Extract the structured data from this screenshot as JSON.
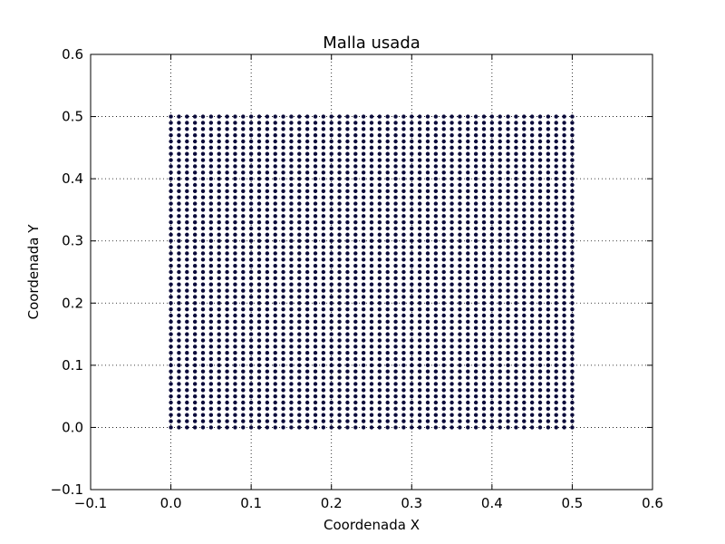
{
  "chart_data": {
    "type": "scatter",
    "title": "Malla usada",
    "xlabel": "Coordenada X",
    "ylabel": "Coordenada Y",
    "xlim": [
      -0.1,
      0.6
    ],
    "ylim": [
      -0.1,
      0.6
    ],
    "grid": true,
    "x_ticks": [
      -0.1,
      0.0,
      0.1,
      0.2,
      0.3,
      0.4,
      0.5,
      0.6
    ],
    "y_ticks": [
      -0.1,
      0.0,
      0.1,
      0.2,
      0.3,
      0.4,
      0.5,
      0.6
    ],
    "x_tick_labels": [
      "−0.1",
      "0.0",
      "0.1",
      "0.2",
      "0.3",
      "0.4",
      "0.5",
      "0.6"
    ],
    "y_tick_labels": [
      "−0.1",
      "0.0",
      "0.1",
      "0.2",
      "0.3",
      "0.4",
      "0.5",
      "0.6"
    ],
    "series": [
      {
        "grid_points": {
          "x_start": 0.0,
          "x_end": 0.5,
          "x_count": 51,
          "y_start": 0.0,
          "y_end": 0.5,
          "y_count": 51
        },
        "color": "#0b0b3b"
      }
    ]
  }
}
